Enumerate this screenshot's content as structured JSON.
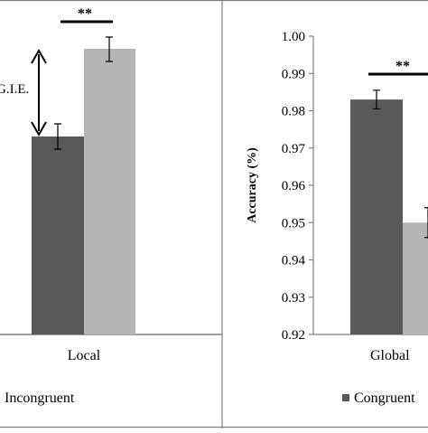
{
  "chart_data": [
    {
      "panel": "left",
      "type": "bar",
      "categories": [
        "Local"
      ],
      "series": [
        {
          "name": "",
          "values": [
            null
          ]
        },
        {
          "name": "Incongruent",
          "values": [
            null
          ]
        }
      ],
      "annotations": {
        "significance": "**",
        "interference_label": "G.I.E."
      },
      "legend": {
        "entries": [
          "Incongruent"
        ],
        "position": "bottom"
      },
      "grid": false
    },
    {
      "panel": "right",
      "type": "bar",
      "categories": [
        "Global"
      ],
      "series": [
        {
          "name": "Congruent",
          "values": [
            0.983
          ],
          "errors": [
            0.0025
          ]
        },
        {
          "name": "",
          "values": [
            0.95
          ],
          "errors": [
            0.004
          ]
        }
      ],
      "ylabel": "Accuracy (%)",
      "ylim": [
        0.92,
        1.0
      ],
      "yticks": [
        "0.92",
        "0.93",
        "0.94",
        "0.95",
        "0.96",
        "0.97",
        "0.98",
        "0.99",
        "1.00"
      ],
      "annotations": {
        "significance": "**"
      },
      "legend": {
        "entries": [
          "Congruent"
        ],
        "position": "bottom"
      },
      "grid": false
    }
  ],
  "colors": {
    "congruent": "#595959",
    "incongruent": "#b5b5b5",
    "axis": "#808080",
    "border": "#7f7f7f"
  },
  "left_panel": {
    "category": "Local",
    "significance": "**",
    "gie_label": "G.I.E.",
    "legend_label": "Incongruent"
  },
  "right_panel": {
    "category": "Global",
    "significance": "**",
    "ylabel": "Accuracy (%)",
    "legend_label": "Congruent"
  }
}
